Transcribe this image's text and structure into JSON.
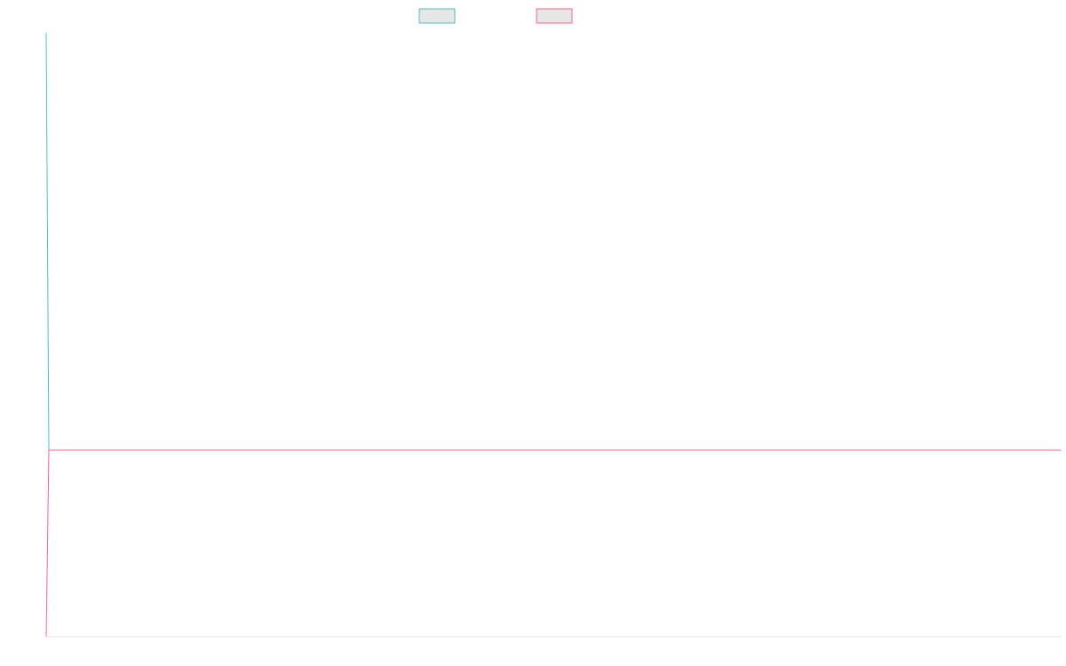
{
  "chart_data": {
    "type": "line",
    "legend": {
      "placement": "top-center",
      "shown": true
    },
    "grid": false,
    "axes": {
      "x_axis_visible": true,
      "y_axis_visible": false,
      "tick_labels_visible": false
    },
    "series": [
      {
        "color": "#4bc0c0",
        "values": [
          1,
          0,
          0,
          0,
          0,
          0,
          0,
          0,
          0,
          0,
          0,
          0,
          0,
          0,
          0,
          0,
          0,
          0,
          0,
          0,
          0,
          0,
          0,
          0,
          0,
          0,
          0,
          0,
          0,
          0,
          0,
          0,
          0,
          0,
          0,
          0,
          0,
          0,
          0,
          0,
          0,
          0,
          0,
          0,
          0,
          0,
          0,
          0,
          0,
          0,
          0,
          0,
          0,
          0,
          0,
          0,
          0,
          0,
          0,
          0,
          0,
          0,
          0,
          0,
          0,
          0,
          0,
          0,
          0,
          0,
          0,
          0,
          0,
          0,
          0,
          0,
          0,
          0,
          0,
          0,
          0,
          0,
          0,
          0,
          0,
          0,
          0,
          0,
          0,
          0,
          0,
          0,
          0,
          0,
          0,
          0,
          0,
          0,
          0,
          0,
          0,
          0,
          0,
          0,
          0,
          0,
          0,
          0,
          0,
          0,
          0,
          0,
          0,
          0,
          0,
          0,
          0,
          0,
          0,
          0,
          0,
          0,
          0,
          0,
          0,
          0,
          0,
          0,
          0,
          0,
          0,
          0,
          0,
          0,
          0,
          0,
          0,
          0,
          0,
          0,
          0,
          0,
          0,
          0,
          0,
          0,
          0,
          0,
          0,
          0,
          0,
          0,
          0,
          0,
          0,
          0,
          0,
          0,
          0,
          0,
          0,
          0,
          0,
          0,
          0,
          0,
          0,
          0,
          0,
          0,
          0,
          0,
          0,
          0,
          0,
          0,
          0,
          0,
          0,
          0,
          0,
          0,
          0,
          0,
          0,
          0,
          0,
          0,
          0,
          0,
          0,
          0,
          0,
          0,
          0,
          0,
          0,
          0,
          0,
          0,
          0,
          0,
          0,
          0,
          0,
          0,
          0,
          0,
          0,
          0,
          0,
          0,
          0,
          0,
          0,
          0,
          0,
          0,
          0,
          0,
          0,
          0,
          0,
          0,
          0,
          0,
          0,
          0,
          0,
          0,
          0,
          0,
          0,
          0,
          0,
          0,
          0,
          0,
          0,
          0,
          0,
          0,
          0,
          0,
          0,
          0,
          0,
          0,
          0,
          0,
          0,
          0,
          0,
          0,
          0,
          0,
          0,
          0,
          0,
          0,
          0,
          0,
          0,
          0,
          0,
          0,
          0,
          0,
          0,
          0,
          0,
          0,
          0,
          0,
          0,
          0,
          0,
          0,
          0,
          0,
          0,
          0,
          0,
          0,
          0,
          0,
          0,
          0,
          0,
          0,
          0,
          0
        ]
      },
      {
        "color": "#ff6384",
        "values": [
          -0.45,
          0,
          0,
          0,
          0,
          0,
          0,
          0,
          0,
          0,
          0,
          0,
          0,
          0,
          0,
          0,
          0,
          0,
          0,
          0,
          0,
          0,
          0,
          0,
          0,
          0,
          0,
          0,
          0,
          0,
          0,
          0,
          0,
          0,
          0,
          0,
          0,
          0,
          0,
          0,
          0,
          0,
          0,
          0,
          0,
          0,
          0,
          0,
          0,
          0,
          0,
          0,
          0,
          0,
          0,
          0,
          0,
          0,
          0,
          0,
          0,
          0,
          0,
          0,
          0,
          0,
          0,
          0,
          0,
          0,
          0,
          0,
          0,
          0,
          0,
          0,
          0,
          0,
          0,
          0,
          0,
          0,
          0,
          0,
          0,
          0,
          0,
          0,
          0,
          0,
          0,
          0,
          0,
          0,
          0,
          0,
          0,
          0,
          0,
          0,
          0,
          0,
          0,
          0,
          0,
          0,
          0,
          0,
          0,
          0,
          0,
          0,
          0,
          0,
          0,
          0,
          0,
          0,
          0,
          0,
          0,
          0,
          0,
          0,
          0,
          0,
          0,
          0,
          0,
          0,
          0,
          0,
          0,
          0,
          0,
          0,
          0,
          0,
          0,
          0,
          0,
          0,
          0,
          0,
          0,
          0,
          0,
          0,
          0,
          0,
          0,
          0,
          0,
          0,
          0,
          0,
          0,
          0,
          0,
          0,
          0,
          0,
          0,
          0,
          0,
          0,
          0,
          0,
          0,
          0,
          0,
          0,
          0,
          0,
          0,
          0,
          0,
          0,
          0,
          0,
          0,
          0,
          0,
          0,
          0,
          0,
          0,
          0,
          0,
          0,
          0,
          0,
          0,
          0,
          0,
          0,
          0,
          0,
          0,
          0,
          0,
          0,
          0,
          0,
          0,
          0,
          0,
          0,
          0,
          0,
          0,
          0,
          0,
          0,
          0,
          0,
          0,
          0,
          0,
          0,
          0,
          0,
          0,
          0,
          0,
          0,
          0,
          0,
          0,
          0,
          0,
          0,
          0,
          0,
          0,
          0,
          0,
          0,
          0,
          0,
          0,
          0,
          0,
          0,
          0,
          0,
          0,
          0,
          0,
          0,
          0,
          0,
          0,
          0,
          0,
          0,
          0,
          0,
          0,
          0,
          0,
          0,
          0,
          0,
          0,
          0,
          0,
          0,
          0,
          0,
          0,
          0,
          0,
          0,
          0,
          0,
          0,
          0,
          0,
          0,
          0,
          0,
          0,
          0,
          0,
          0,
          0,
          0,
          0
        ]
      }
    ],
    "ylim": [
      -0.45,
      1
    ]
  }
}
